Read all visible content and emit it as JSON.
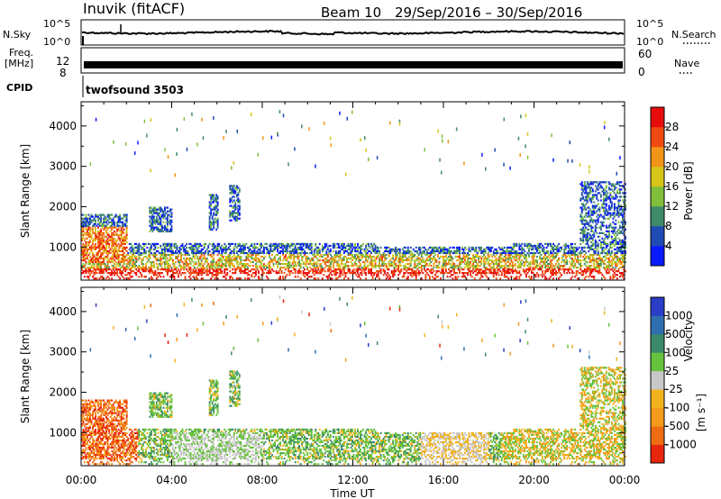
{
  "header": {
    "station": "Inuvik (fitACF)",
    "beam": "Beam 10",
    "date_range": "29/Sep/2016 – 30/Sep/2016"
  },
  "top_panels": {
    "nsky_label": "N.Sky",
    "nsky_ticks": [
      "10^5",
      "10^0"
    ],
    "nsearch_label": "N.Search",
    "nsearch_ticks": [
      "10^5",
      "10^0"
    ],
    "freq_label": "Freq.",
    "freq_unit": "[MHz]",
    "freq_ticks": [
      "12",
      "8"
    ],
    "nave_label": "Nave",
    "nave_ticks": [
      "60",
      "0"
    ],
    "cpid_label": "CPID",
    "cpid_value": "twofsound 3503"
  },
  "chart_data": [
    {
      "type": "heatmap",
      "name": "power",
      "ylabel": "Slant Range [km]",
      "ylim": [
        180,
        4600
      ],
      "yticks": [
        "1000",
        "2000",
        "3000",
        "4000"
      ],
      "x_range_hours": [
        0,
        24
      ],
      "colorbar": {
        "label": "Power [dB]",
        "range": [
          0,
          32
        ],
        "ticks": [
          "4",
          "8",
          "12",
          "16",
          "20",
          "24",
          "28"
        ],
        "colors": [
          "#0a1aff",
          "#1f4bb5",
          "#3f8a6a",
          "#7fbf3a",
          "#d6c61a",
          "#f19418",
          "#f04a10",
          "#e80d0d"
        ]
      }
    },
    {
      "type": "heatmap",
      "name": "velocity",
      "ylabel": "Slant Range [km]",
      "ylim": [
        180,
        4600
      ],
      "yticks": [
        "1000",
        "2000",
        "3000",
        "4000"
      ],
      "x_range_hours": [
        0,
        24
      ],
      "colorbar": {
        "label": "Velocity",
        "unit": "[m s⁻¹]",
        "ticks": [
          "1000",
          "500",
          "100",
          "25",
          "-25",
          "-100",
          "-500",
          "-1000"
        ],
        "colors": [
          "#2a3ec8",
          "#2e6fb0",
          "#3c8a6c",
          "#67c23d",
          "#c8c8c8",
          "#f2b21e",
          "#f39a1c",
          "#f06c12",
          "#e8250d"
        ]
      }
    }
  ],
  "xaxis": {
    "label": "Time UT",
    "ticks": [
      "00:00",
      "04:00",
      "08:00",
      "12:00",
      "16:00",
      "20:00",
      "00:00"
    ]
  }
}
